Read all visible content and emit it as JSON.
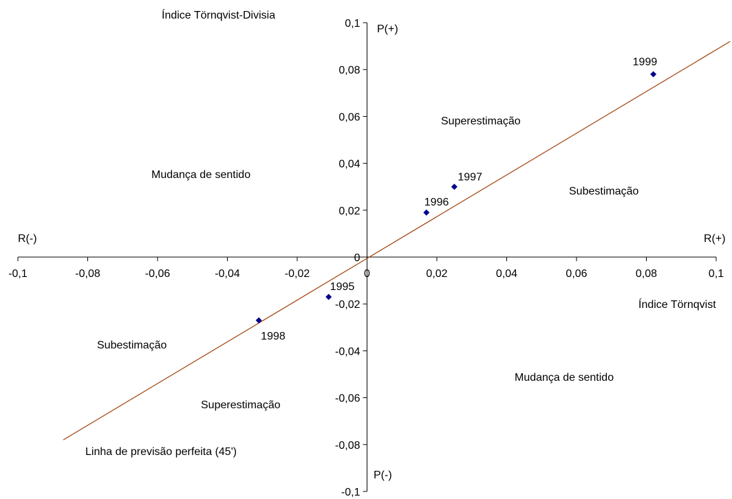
{
  "chart_data": {
    "type": "scatter",
    "title": "",
    "xlabel": "Índice Törnqvist",
    "ylabel": "Índice Törnqvist-Divisia",
    "xlim": [
      -0.1,
      0.1
    ],
    "ylim": [
      -0.1,
      0.1
    ],
    "x_ticks": [
      -0.1,
      -0.08,
      -0.06,
      -0.04,
      -0.02,
      0,
      0.02,
      0.04,
      0.06,
      0.08,
      0.1
    ],
    "y_ticks": [
      -0.1,
      -0.08,
      -0.06,
      -0.04,
      -0.02,
      0,
      0.02,
      0.04,
      0.06,
      0.08,
      0.1
    ],
    "x_tick_labels": [
      "-0,1",
      "-0,08",
      "-0,06",
      "-0,04",
      "-0,02",
      "0",
      "0,02",
      "0,04",
      "0,06",
      "0,08",
      "0,1"
    ],
    "y_tick_labels": [
      "-0,1",
      "-0,08",
      "-0,06",
      "-0,04",
      "-0,02",
      "0",
      "0,02",
      "0,04",
      "0,06",
      "0,08",
      "0,1"
    ],
    "grid": false,
    "points": [
      {
        "label": "1995",
        "x": -0.011,
        "y": -0.017
      },
      {
        "label": "1996",
        "x": 0.017,
        "y": 0.019
      },
      {
        "label": "1997",
        "x": 0.025,
        "y": 0.03
      },
      {
        "label": "1998",
        "x": -0.031,
        "y": -0.027
      },
      {
        "label": "1999",
        "x": 0.082,
        "y": 0.078
      }
    ],
    "point_color": "#00008B",
    "reference_line": {
      "label": "Linha de previsão perfeita (45')",
      "x": [
        -0.087,
        0.104
      ],
      "y": [
        -0.078,
        0.092
      ],
      "color": "#A0400A"
    },
    "axis_end_labels": {
      "x_positive": "R(+)",
      "x_negative": "R(-)",
      "y_positive": "P(+)",
      "y_negative": "P(-)"
    },
    "region_labels": {
      "upper_left": "Mudança de sentido",
      "upper_right_over": "Superestimação",
      "upper_right_under": "Subestimação",
      "lower_left_under": "Subestimação",
      "lower_left_over": "Superestimação",
      "lower_right": "Mudança de sentido"
    }
  }
}
